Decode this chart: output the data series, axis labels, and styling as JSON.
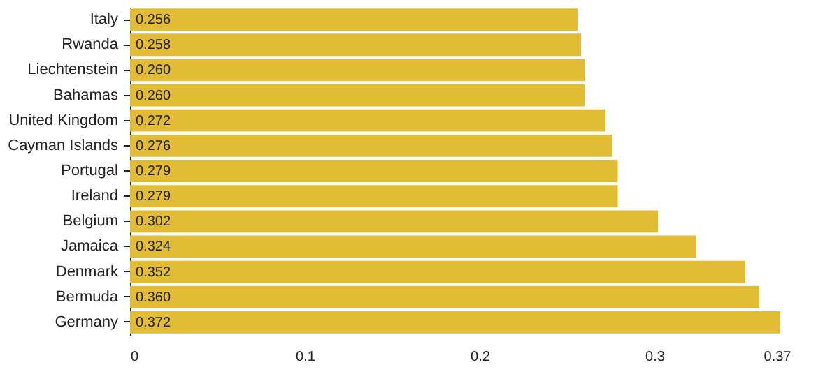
{
  "chart_data": {
    "type": "bar",
    "orientation": "horizontal",
    "categories": [
      "Italy",
      "Rwanda",
      "Liechtenstein",
      "Bahamas",
      "United Kingdom",
      "Cayman Islands",
      "Portugal",
      "Ireland",
      "Belgium",
      "Jamaica",
      "Denmark",
      "Bermuda",
      "Germany"
    ],
    "values": [
      0.256,
      0.258,
      0.26,
      0.26,
      0.272,
      0.276,
      0.279,
      0.279,
      0.302,
      0.324,
      0.352,
      0.36,
      0.372
    ],
    "color": "#e2bc35",
    "xlim": [
      0,
      0.372
    ],
    "xticks": [
      0,
      0.1,
      0.2,
      0.3,
      0.37
    ],
    "value_labels": [
      "0.256",
      "0.258",
      "0.260",
      "0.260",
      "0.272",
      "0.276",
      "0.279",
      "0.279",
      "0.302",
      "0.324",
      "0.352",
      "0.360",
      "0.372"
    ],
    "grid": false
  }
}
